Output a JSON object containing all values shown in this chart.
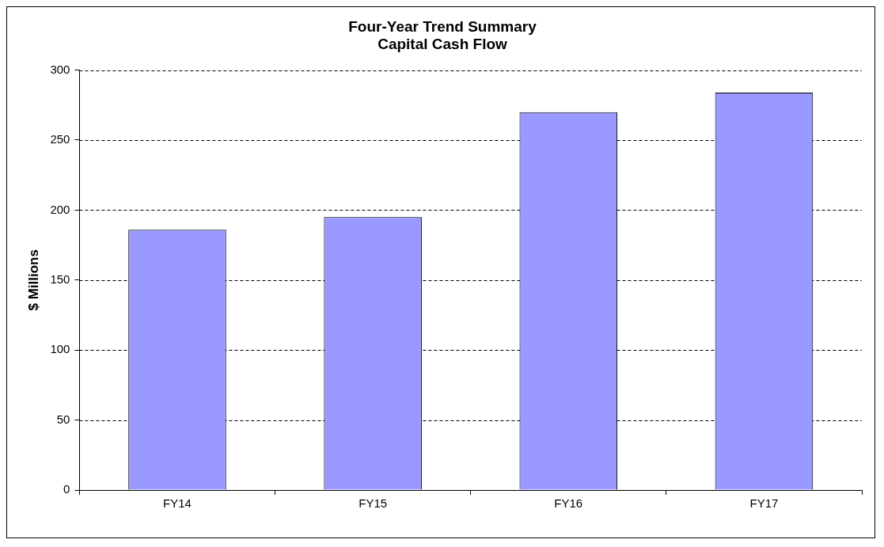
{
  "chart_data": {
    "type": "bar",
    "title": "Four-Year Trend Summary",
    "subtitle": "Capital Cash Flow",
    "ylabel": "$ Millions",
    "categories": [
      "FY14",
      "FY15",
      "FY16",
      "FY17"
    ],
    "values": [
      186,
      195,
      270,
      284
    ],
    "color": "#9999ff",
    "ylim": [
      0,
      300
    ],
    "yticks": [
      0,
      50,
      100,
      150,
      200,
      250,
      300
    ],
    "grid": "y",
    "legend": false
  }
}
